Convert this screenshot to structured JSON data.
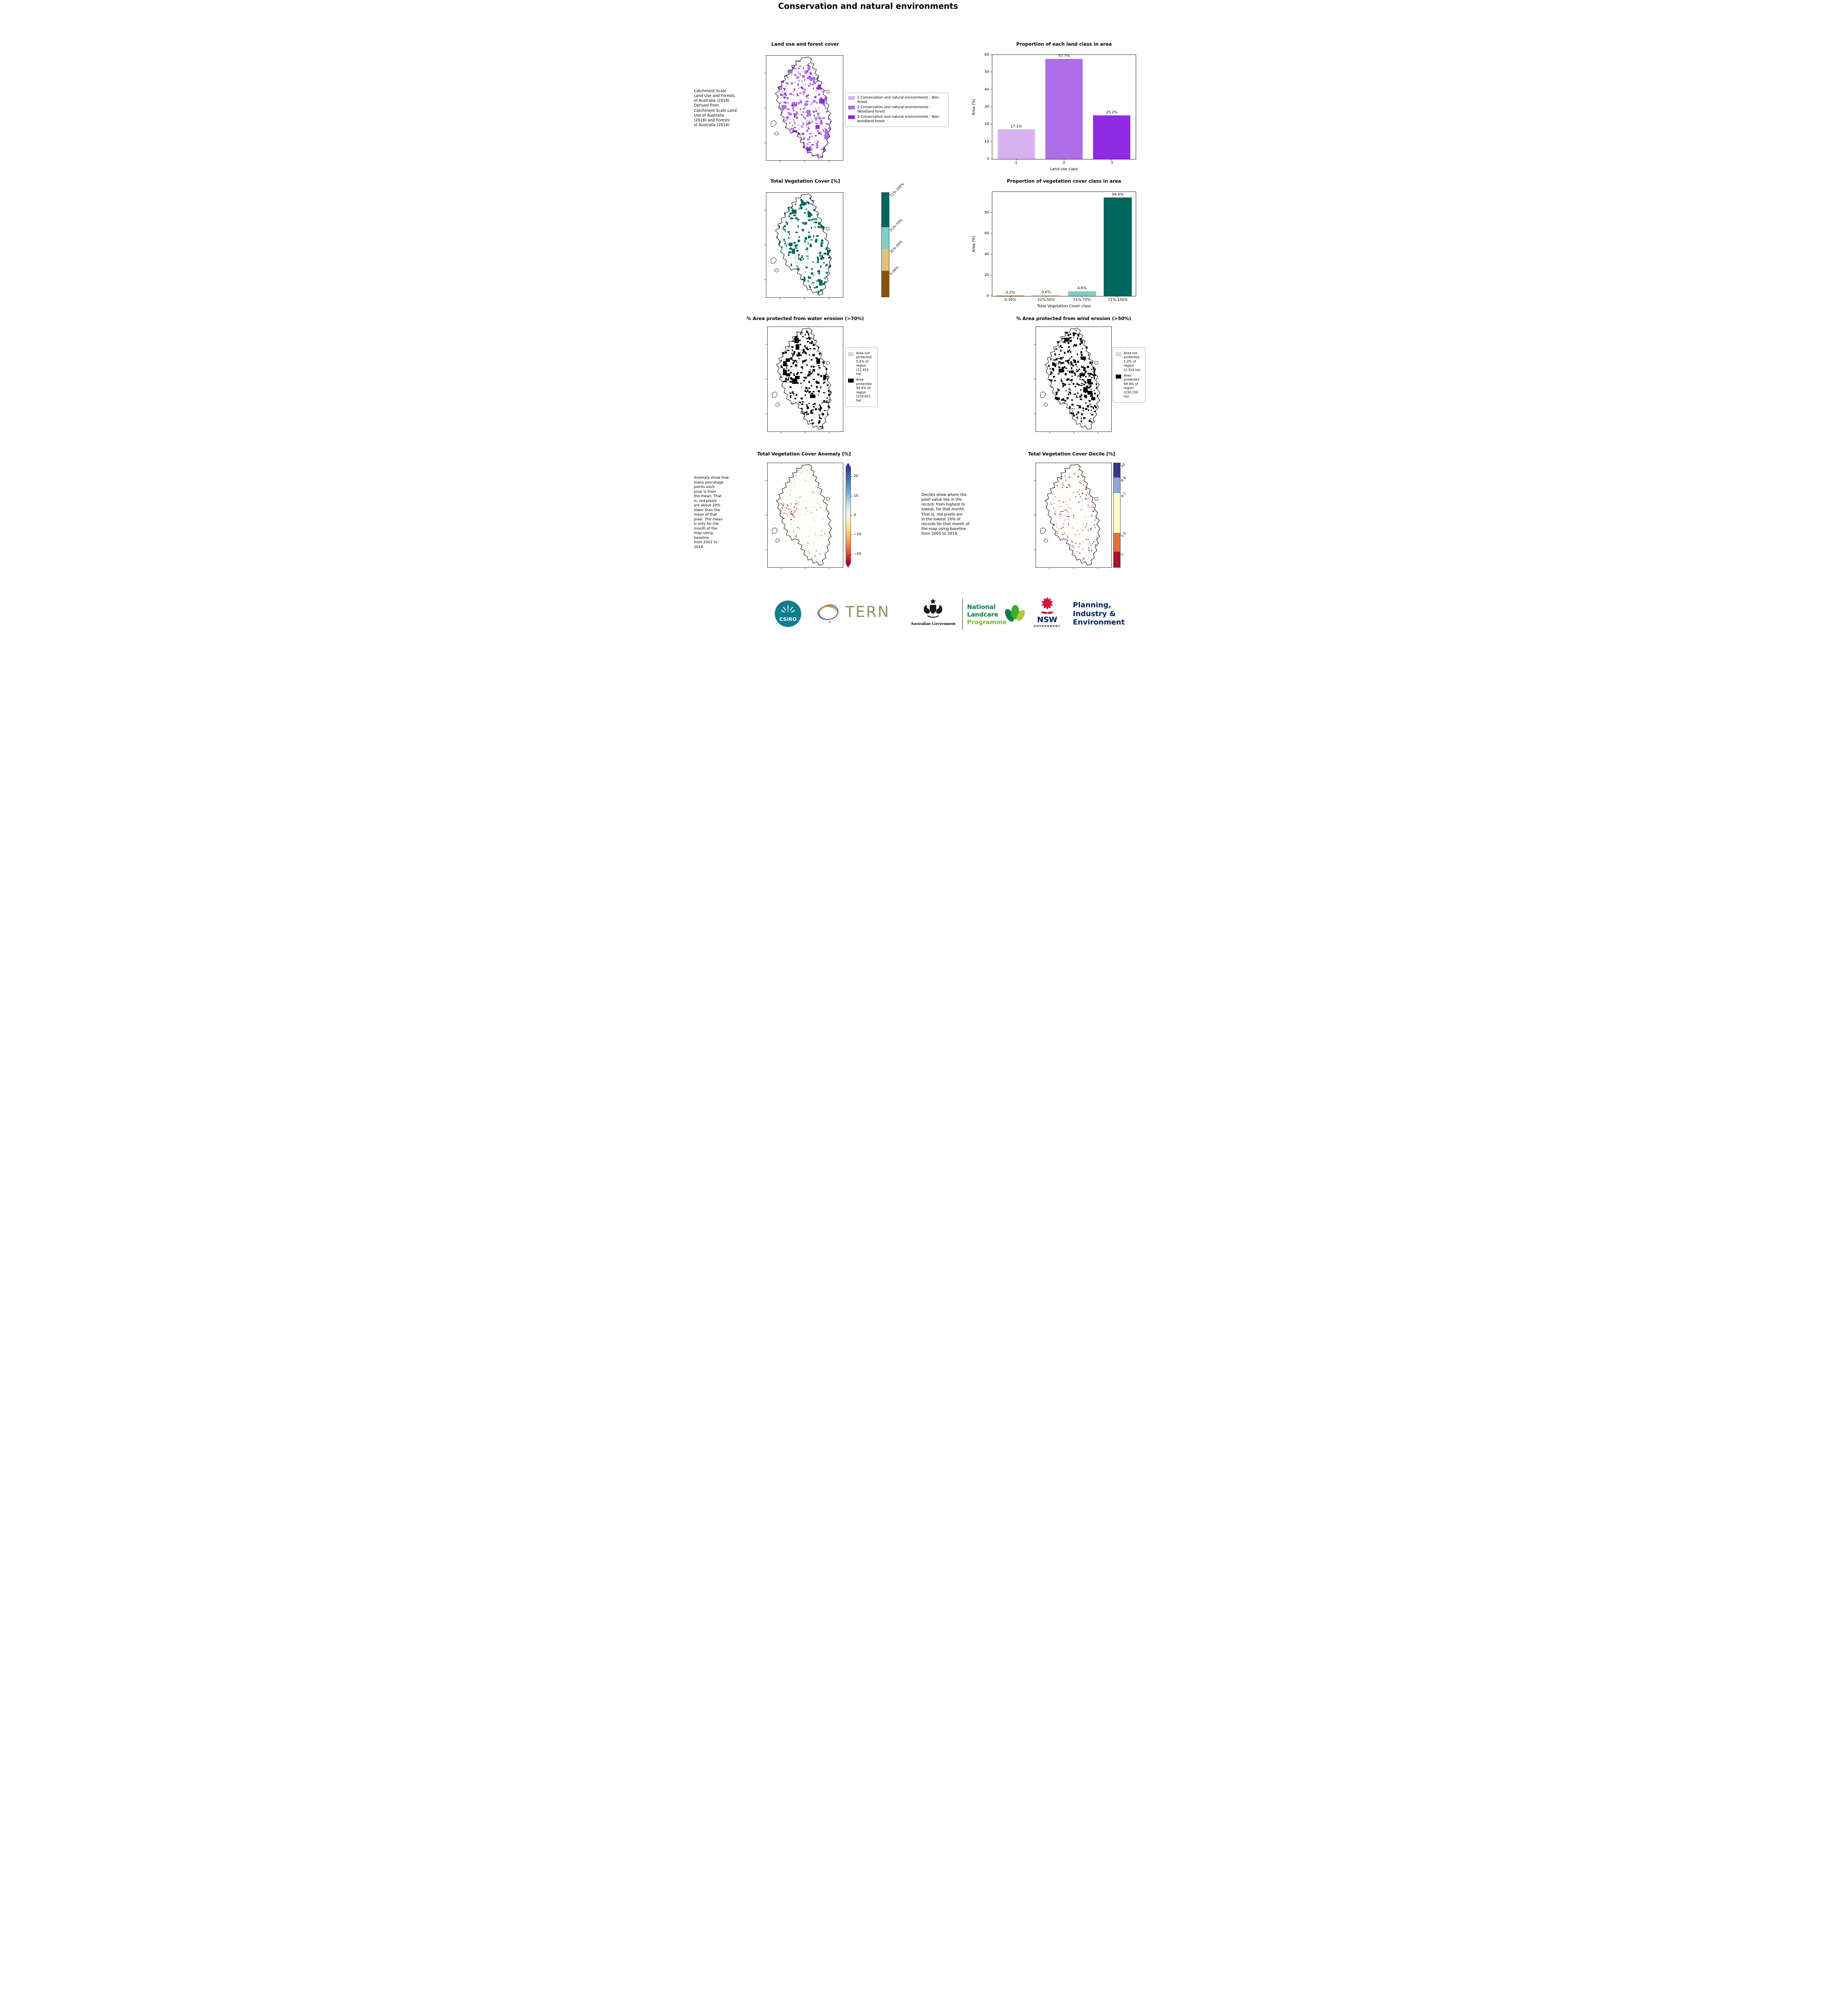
{
  "page": {
    "title": "Conservation and natural environments"
  },
  "row1": {
    "map": {
      "title": "Land use and forest cover",
      "side_note": "Catchment Scale\nLand Use and Forests\nof Australia (2018)\nDerived from\nCatchment Scale Land\nUse of Australia\n(2018) and Forests\nof Australia (2018)",
      "legend": [
        {
          "label": "1 Conservation and natural environments - Non-forest",
          "color": "#d9b3f0"
        },
        {
          "label": "2 Conservation and natural environments - Woodland forest",
          "color": "#af6ee8"
        },
        {
          "label": "3 Conservation and natural environments - Non-woodland forest",
          "color": "#8e2be2"
        }
      ]
    }
  },
  "row2": {
    "map": {
      "title": "Total Vegetation Cover [%]"
    },
    "colorbar": {
      "segments": [
        {
          "label": "71%-100%",
          "color": "#01665e",
          "span": 33
        },
        {
          "label": "51%-70%",
          "color": "#80cdc1",
          "span": 21
        },
        {
          "label": "31%-50%",
          "color": "#dfc27d",
          "span": 21
        },
        {
          "label": "0-30%",
          "color": "#8c510a",
          "span": 25
        }
      ]
    }
  },
  "row3": {
    "water": {
      "title": "% Area protected from water erosion (>70%)",
      "legend": [
        {
          "label": "Area not\nprotected\n5.4% of\nregion\n(12,553\nha)",
          "color": "#d9d9d9"
        },
        {
          "label": "Area\nprotected\n94.6% of\nregion\n(219,921\nha)",
          "color": "#000000"
        }
      ]
    },
    "wind": {
      "title": "% Area protected from wind erosion (>50%)",
      "legend": [
        {
          "label": "Area not\nprotected\n1.0% of\nregion\n(2,324 ha)",
          "color": "#d9d9d9"
        },
        {
          "label": "Area\nprotected\n99.0% of\nregion\n(230,150\nha)",
          "color": "#000000"
        }
      ]
    }
  },
  "row4": {
    "anomaly": {
      "title": "Total Vegetation Cover Anomaly [%]",
      "note": "Anomaly show how\nmany percetage\npoints each\npixel is from\nthe mean. That\nis, red pixels\nare about 20%\nlower than the\nmean of that\npixel. The mean\nis only for the\nmonth of the\nmap using\nbaseline\nfrom 2001 to\n2019.",
      "colorbar": {
        "top_color": "#313695",
        "bottom_color": "#a50026",
        "ticks": [
          {
            "label": "20",
            "pos": 10
          },
          {
            "label": "10",
            "pos": 30
          },
          {
            "label": "0",
            "pos": 50
          },
          {
            "label": "−10",
            "pos": 70
          },
          {
            "label": "−20",
            "pos": 90
          }
        ]
      }
    },
    "decile": {
      "title": "Total Vegetation Cover Decile [%]",
      "note": "Deciles show where the\npixel value lies in the\nrecord, from highest to\nlowest, for that month.\nThat is, red pixels are\nin the lowest 10% of\nrecords for that month of\nthe map using baseline\nfrom 2001 to 2019.",
      "colorbar": {
        "segments": [
          {
            "label": "10",
            "color": "#313695",
            "span": 14
          },
          {
            "label": "8-9",
            "color": "#8fa9d4",
            "span": 15
          },
          {
            "label": "4-7",
            "color": "#ffffbf",
            "span": 38
          },
          {
            "label": "2-3",
            "color": "#e1703b",
            "span": 18
          },
          {
            "label": "1",
            "color": "#b01226",
            "span": 15
          }
        ]
      }
    }
  },
  "chart_data": [
    {
      "type": "bar",
      "title": "Proportion of each land class in area",
      "categories": [
        "1",
        "2",
        "3"
      ],
      "values": [
        17.1,
        57.7,
        25.2
      ],
      "value_labels": [
        "17.1%",
        "57.7%",
        "25.2%"
      ],
      "colors": [
        "#d9b3f0",
        "#af6ee8",
        "#8e2be2"
      ],
      "xlabel": "Land use class",
      "ylabel": "Area (%)",
      "ylim": [
        0,
        60
      ],
      "yticks": [
        0,
        10,
        20,
        30,
        40,
        50,
        60
      ],
      "grid": false,
      "legend_position": "none"
    },
    {
      "type": "bar",
      "title": "Proportion of vegetation cover class in area",
      "categories": [
        "0-30%",
        "31%-50%",
        "51%-70%",
        "71%-100%"
      ],
      "values": [
        0.2,
        0.6,
        4.6,
        94.6
      ],
      "value_labels": [
        "0.2%",
        "0.6%",
        "4.6%",
        "94.6%"
      ],
      "colors": [
        "#8c510a",
        "#dfc27d",
        "#80cdc1",
        "#01665e"
      ],
      "xlabel": "Total Vegetation Cover class",
      "ylabel": "Area (%)",
      "ylim": [
        0,
        100
      ],
      "yticks": [
        0,
        20,
        40,
        60,
        80
      ],
      "grid": false,
      "legend_position": "none"
    }
  ],
  "footer": {
    "csiro": {
      "label": "CSIRO",
      "color": "#0e7d8e"
    },
    "tern": {
      "label": "TERN",
      "color": "#8f915f"
    },
    "aus_gov": {
      "label": "Australian Government"
    },
    "landcare": {
      "lines": [
        "National",
        "Landcare",
        "Programme"
      ],
      "colors": [
        "#00843D",
        "#00843D",
        "#78BE20"
      ]
    },
    "nsw": {
      "name": "NSW",
      "sub": "GOVERNMENT",
      "navy": "#002664",
      "red": "#d7153a"
    },
    "dpie": {
      "lines": [
        "Planning,",
        "Industry &",
        "Environment"
      ],
      "color": "#002664"
    }
  }
}
